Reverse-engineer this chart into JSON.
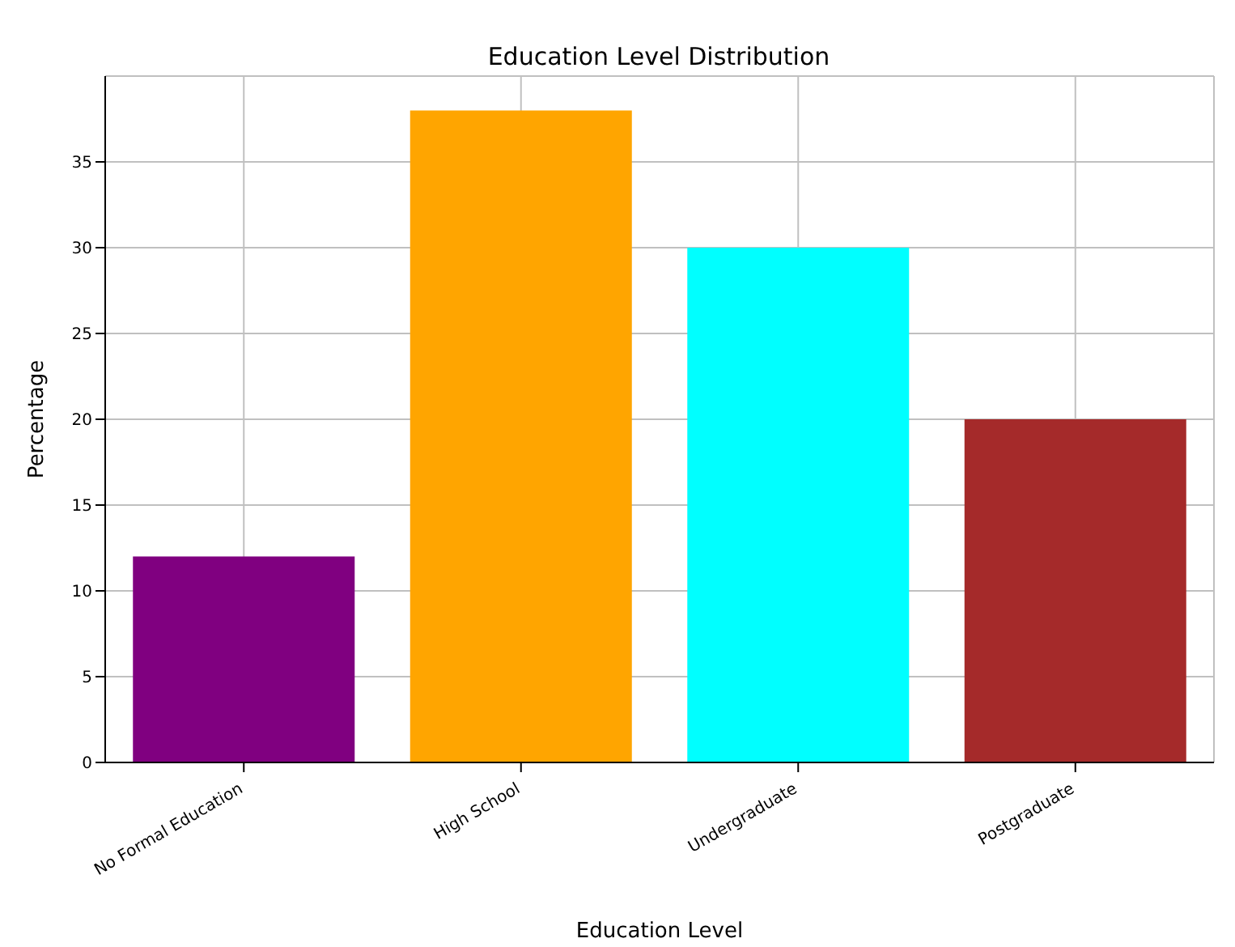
{
  "chart_data": {
    "type": "bar",
    "title": "Education Level Distribution",
    "xlabel": "Education Level",
    "ylabel": "Percentage",
    "categories": [
      "No Formal Education",
      "High School",
      "Undergraduate",
      "Postgraduate"
    ],
    "values": [
      12,
      38,
      30,
      20
    ],
    "colors": [
      "#800080",
      "#ffa500",
      "#00ffff",
      "#a52a2a"
    ],
    "ylim": [
      0,
      40
    ],
    "yticks": [
      0,
      5,
      10,
      15,
      20,
      25,
      30,
      35
    ],
    "grid": true
  }
}
